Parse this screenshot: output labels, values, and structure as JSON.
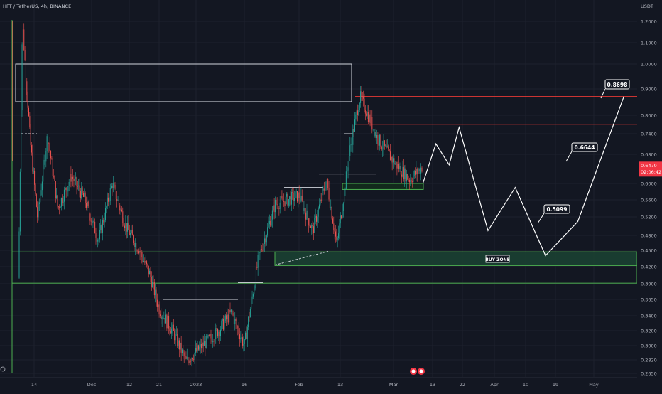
{
  "header": {
    "symbol_title": "HFT / TetherUS, 4h, BINANCE",
    "currency": "USDT"
  },
  "colors": {
    "background": "#131722",
    "grid": "#1e222d",
    "axis_text": "#b2b5be",
    "candle_up": "#26a69a",
    "candle_down": "#ef5350",
    "zone_green": "#4caf50",
    "zone_fill": "#1b4332",
    "projection_line": "#ffffff",
    "resistance_red": "#e53935",
    "price_badge": "#f23645"
  },
  "current_price": {
    "price_label": "0.6470",
    "countdown_label": "02:06:42"
  },
  "annotations": {
    "buy_zone_label": "BUY ZONE",
    "targets": [
      "0.5099",
      "0.6644",
      "0.8698"
    ]
  },
  "chart_data": {
    "type": "candlestick",
    "title": "HFT / TetherUS, 4h, BINANCE",
    "y_scale": "log",
    "ylim": [
      0.26,
      1.25
    ],
    "y_ticks": [
      "1.2000",
      "1.1000",
      "1.0000",
      "0.9000",
      "0.8000",
      "0.7400",
      "0.6800",
      "0.6000",
      "0.5600",
      "0.5200",
      "0.4800",
      "0.4500",
      "0.4200",
      "0.3900",
      "0.3650",
      "0.3400",
      "0.3200",
      "0.3000",
      "0.2820",
      "0.2650"
    ],
    "x_ticks": [
      "14",
      "Dec",
      "12",
      "21",
      "2023",
      "16",
      "Feb",
      "13",
      "Mar",
      "13",
      "22",
      "Apr",
      "10",
      "19",
      "May"
    ],
    "price_path": [
      [
        "Nov 10",
        0.4
      ],
      [
        "Nov 11",
        1.2
      ],
      [
        "Nov 13",
        0.72
      ],
      [
        "Nov 15",
        0.52
      ],
      [
        "Nov 18",
        0.74
      ],
      [
        "Nov 21",
        0.54
      ],
      [
        "Nov 25",
        0.62
      ],
      [
        "Nov 29",
        0.56
      ],
      [
        "Dec 3",
        0.47
      ],
      [
        "Dec 7",
        0.6
      ],
      [
        "Dec 11",
        0.5
      ],
      [
        "Dec 15",
        0.45
      ],
      [
        "Dec 18",
        0.41
      ],
      [
        "Dec 21",
        0.35
      ],
      [
        "Dec 25",
        0.32
      ],
      [
        "Dec 29",
        0.28
      ],
      [
        "Jan 3",
        0.3
      ],
      [
        "Jan 8",
        0.32
      ],
      [
        "Jan 12",
        0.345
      ],
      [
        "Jan 16",
        0.3
      ],
      [
        "Jan 20",
        0.43
      ],
      [
        "Jan 25",
        0.55
      ],
      [
        "Feb 1",
        0.57
      ],
      [
        "Feb 5",
        0.49
      ],
      [
        "Feb 9",
        0.61
      ],
      [
        "Feb 12",
        0.46
      ],
      [
        "Feb 16",
        0.7
      ],
      [
        "Feb 19",
        0.87
      ],
      [
        "Feb 24",
        0.73
      ],
      [
        "Mar 1",
        0.66
      ],
      [
        "Mar 6",
        0.61
      ],
      [
        "Mar 10",
        0.647
      ]
    ],
    "projection": [
      [
        "Mar 10",
        0.6
      ],
      [
        "Mar 14",
        0.71
      ],
      [
        "Mar 18",
        0.65
      ],
      [
        "Mar 21",
        0.76
      ],
      [
        "Mar 30",
        0.49
      ],
      [
        "Apr 7",
        0.59
      ],
      [
        "Apr 16",
        0.44
      ],
      [
        "Apr 26",
        0.5099
      ],
      [
        "May 3",
        0.6644
      ],
      [
        "May 10",
        0.8698
      ]
    ],
    "levels": {
      "resistance_high": 0.87,
      "resistance_mid": 0.77,
      "buy_zone": [
        0.422,
        0.447
      ],
      "range_box": [
        0.391,
        0.447
      ],
      "top_box": [
        0.85,
        1.0
      ],
      "demand_box": [
        0.585,
        0.6
      ],
      "dashed_levels": [
        0.74,
        0.74,
        0.39
      ],
      "ranges_white": [
        0.59,
        0.625,
        0.74,
        0.365
      ]
    },
    "x_range": [
      "Nov 8",
      "May 21"
    ]
  }
}
